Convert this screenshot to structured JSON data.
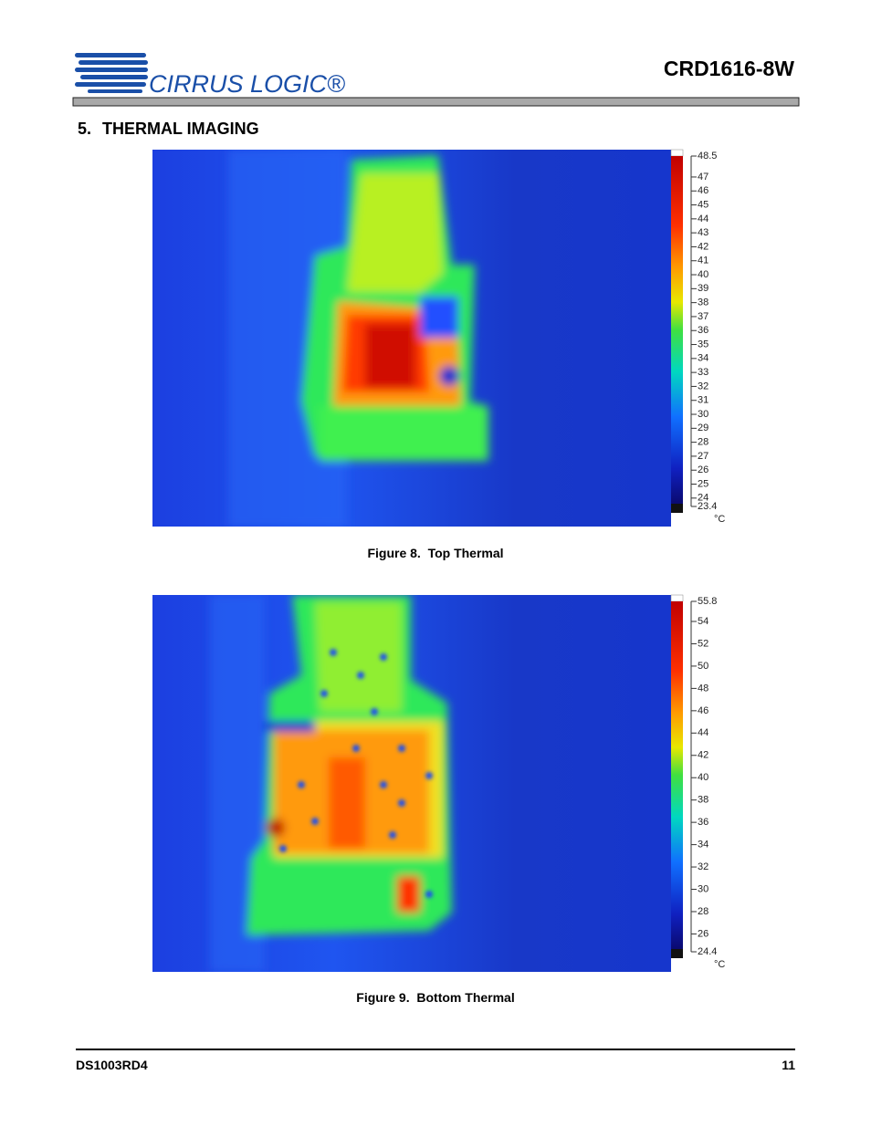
{
  "header": {
    "logo_text": "CIRRUS LOGIC®",
    "title": "CRD1616-8W"
  },
  "section": {
    "number": "5.",
    "title": "THERMAL IMAGING"
  },
  "figures": [
    {
      "scale_labels": [
        "48.5",
        "47",
        "46",
        "45",
        "44",
        "43",
        "42",
        "41",
        "40",
        "39",
        "38",
        "37",
        "36",
        "35",
        "34",
        "33",
        "32",
        "31",
        "30",
        "29",
        "28",
        "27",
        "26",
        "25",
        "24",
        "23.4"
      ],
      "unit": "°C",
      "caption": "Figure 8.  Top Thermal"
    },
    {
      "scale_labels": [
        "55.8",
        "54",
        "52",
        "50",
        "48",
        "46",
        "44",
        "42",
        "40",
        "38",
        "36",
        "34",
        "32",
        "30",
        "28",
        "26",
        "24.4"
      ],
      "unit": "°C",
      "caption": "Figure 9.  Bottom Thermal"
    }
  ],
  "footer": {
    "doc_id": "DS1003RD4",
    "page": "11"
  }
}
